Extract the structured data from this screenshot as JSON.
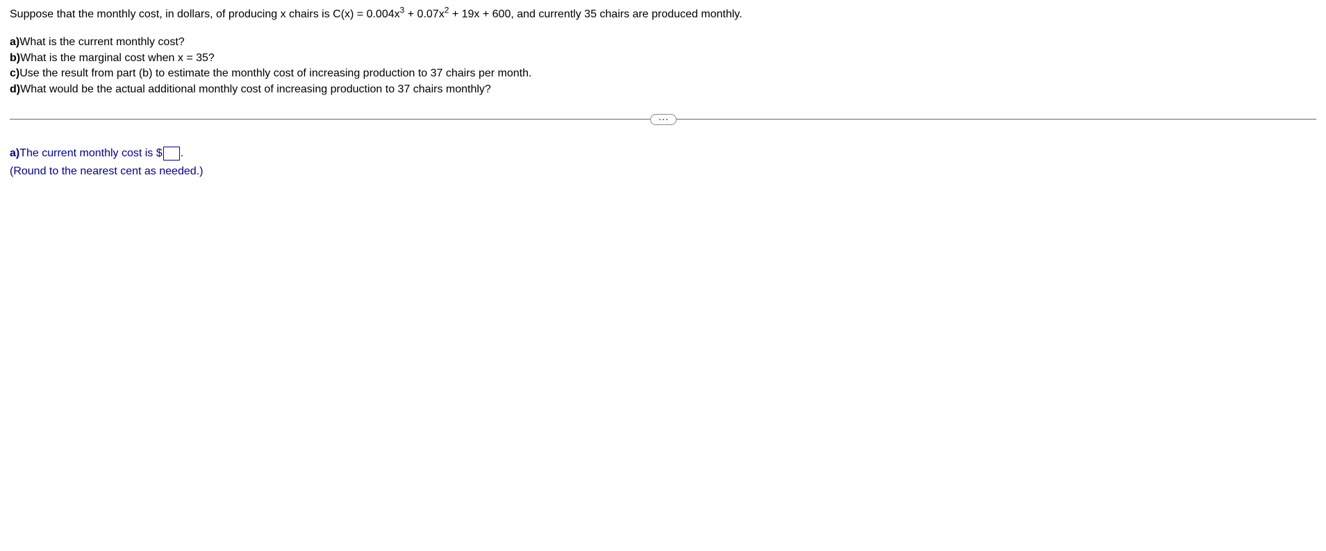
{
  "problem": {
    "statement_pre": "Suppose that the monthly cost, in dollars, of producing x chairs is C(x) = 0.004x",
    "exp1": "3",
    "statement_mid1": " + 0.07x",
    "exp2": "2",
    "statement_post": " + 19x + 600, and currently 35 chairs are produced monthly."
  },
  "questions": {
    "a_label": "a)",
    "a_text": "What is the current monthly cost?",
    "b_label": "b)",
    "b_text": "What is the marginal cost when x = 35?",
    "c_label": "c)",
    "c_text": "Use the result from part (b) to estimate the monthly cost of increasing production to 37 chairs per month.",
    "d_label": "d)",
    "d_text": "What would be the actual additional monthly cost of increasing production to 37 chairs monthly?"
  },
  "answer": {
    "a_label": "a)",
    "a_text_pre": " The current monthly cost is $",
    "a_text_post": ".",
    "a_hint": "(Round to the nearest cent as needed.)",
    "input_value": ""
  }
}
